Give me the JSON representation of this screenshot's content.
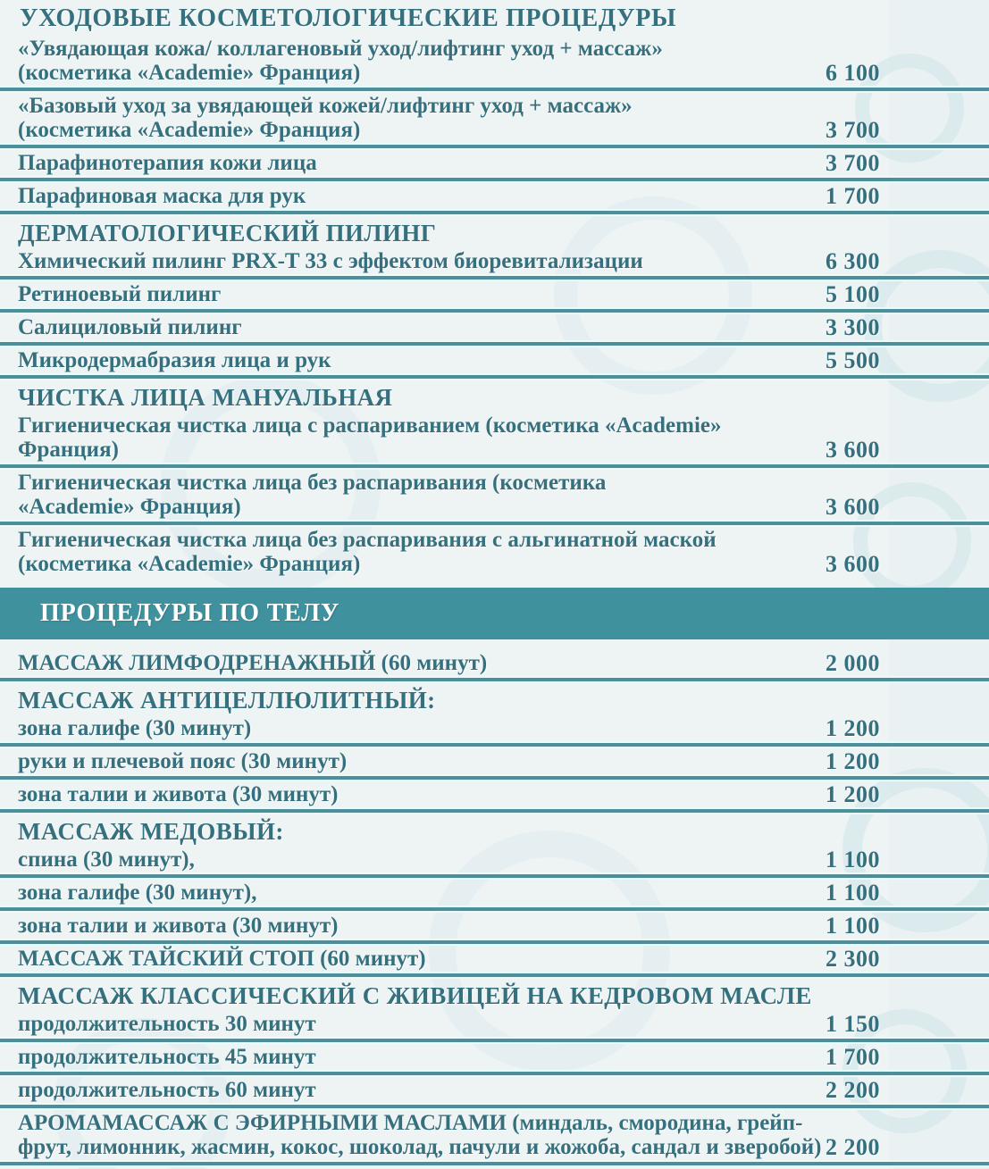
{
  "colors": {
    "background": "#eef3f4",
    "text": "#35707e",
    "divider": "#4e8e9a",
    "divider_edge": "#e8fbfd",
    "banner_background": "#3f919e",
    "banner_text": "#ffffff"
  },
  "price_list": {
    "items": [
      {
        "type": "section-title",
        "text": "УХОДОВЫЕ КОСМЕТОЛОГИЧЕСКИЕ ПРОЦЕДУРЫ"
      },
      {
        "type": "service",
        "text": "«Увядающая кожа/ коллагеновый уход/лифтинг уход + массаж»\n(косметика «Academie» Франция)",
        "price": "6 100",
        "divider": true
      },
      {
        "type": "service",
        "text": "«Базовый уход за увядающей кожей/лифтинг уход + массаж»\n(косметика «Academie» Франция)",
        "price": "3 700",
        "divider": true
      },
      {
        "type": "service",
        "text": "Парафинотерапия кожи лица",
        "price": "3 700",
        "divider": true
      },
      {
        "type": "service",
        "text": "Парафиновая маска для рук",
        "price": "1 700",
        "divider": true
      },
      {
        "type": "group-header",
        "text": "ДЕРМАТОЛОГИЧЕСКИЙ ПИЛИНГ"
      },
      {
        "type": "service",
        "text": "Химический пилинг PRX-T 33 с эффектом биоревитализации",
        "price": "6 300",
        "divider": true
      },
      {
        "type": "service",
        "text": "Ретиноевый пилинг",
        "price": "5 100",
        "divider": true
      },
      {
        "type": "service",
        "text": "Салициловый пилинг",
        "price": "3 300",
        "divider": true
      },
      {
        "type": "service",
        "text": "Микродермабразия лица и рук",
        "price": "5 500",
        "divider": true
      },
      {
        "type": "group-header",
        "text": "ЧИСТКА ЛИЦА МАНУАЛЬНАЯ"
      },
      {
        "type": "service",
        "text": "Гигиеническая чистка лица с распариванием (косметика «Academie»\nФранция)",
        "price": "3 600",
        "divider": true
      },
      {
        "type": "service",
        "text": "Гигиеническая чистка лица без распаривания (косметика\n«Academie» Франция)",
        "price": "3 600",
        "divider": true
      },
      {
        "type": "service",
        "text": "Гигиеническая чистка лица без распаривания с альгинатной маской\n(косметика «Academie» Франция)",
        "price": "3 600",
        "divider": false
      },
      {
        "type": "banner",
        "text": "ПРОЦЕДУРЫ ПО ТЕЛУ"
      },
      {
        "type": "service",
        "text": "МАССАЖ ЛИМФОДРЕНАЖНЫЙ (60 минут)",
        "price": "2 000",
        "divider": true
      },
      {
        "type": "group-header",
        "text": "МАССАЖ АНТИЦЕЛЛЮЛИТНЫЙ:"
      },
      {
        "type": "service",
        "text": "зона галифе (30 минут)",
        "price": "1 200",
        "divider": true
      },
      {
        "type": "service",
        "text": "руки и плечевой пояс (30 минут)",
        "price": "1 200",
        "divider": true
      },
      {
        "type": "service",
        "text": "зона талии и живота (30 минут)",
        "price": "1 200",
        "divider": true
      },
      {
        "type": "group-header",
        "text": "МАССАЖ МЕДОВЫЙ:"
      },
      {
        "type": "service",
        "text": "спина (30 минут),",
        "price": "1 100",
        "divider": true
      },
      {
        "type": "service",
        "text": "зона галифе (30 минут),",
        "price": "1 100",
        "divider": true
      },
      {
        "type": "service",
        "text": "зона талии и живота (30 минут)",
        "price": "1 100",
        "divider": true
      },
      {
        "type": "service",
        "text": "МАССАЖ ТАЙСКИЙ СТОП (60 минут)",
        "price": "2 300",
        "divider": true
      },
      {
        "type": "group-header",
        "text": "МАССАЖ  КЛАССИЧЕСКИЙ  С ЖИВИЦЕЙ НА КЕДРОВОМ МАСЛЕ"
      },
      {
        "type": "service",
        "text": "продолжительность 30 минут",
        "price": "1 150",
        "divider": true
      },
      {
        "type": "service",
        "text": "продолжительность 45 минут",
        "price": "1 700",
        "divider": true
      },
      {
        "type": "service",
        "text": "продолжительность 60 минут",
        "price": "2 200",
        "divider": true
      },
      {
        "type": "service",
        "text": "АРОМАМАССАЖ С ЭФИРНЫМИ МАСЛАМИ (миндаль, смородина, грейп-\nфрут, лимонник, жасмин, кокос, шоколад, пачули и жожоба, сандал и зверобой)",
        "price": "2 200",
        "divider": true
      }
    ]
  }
}
